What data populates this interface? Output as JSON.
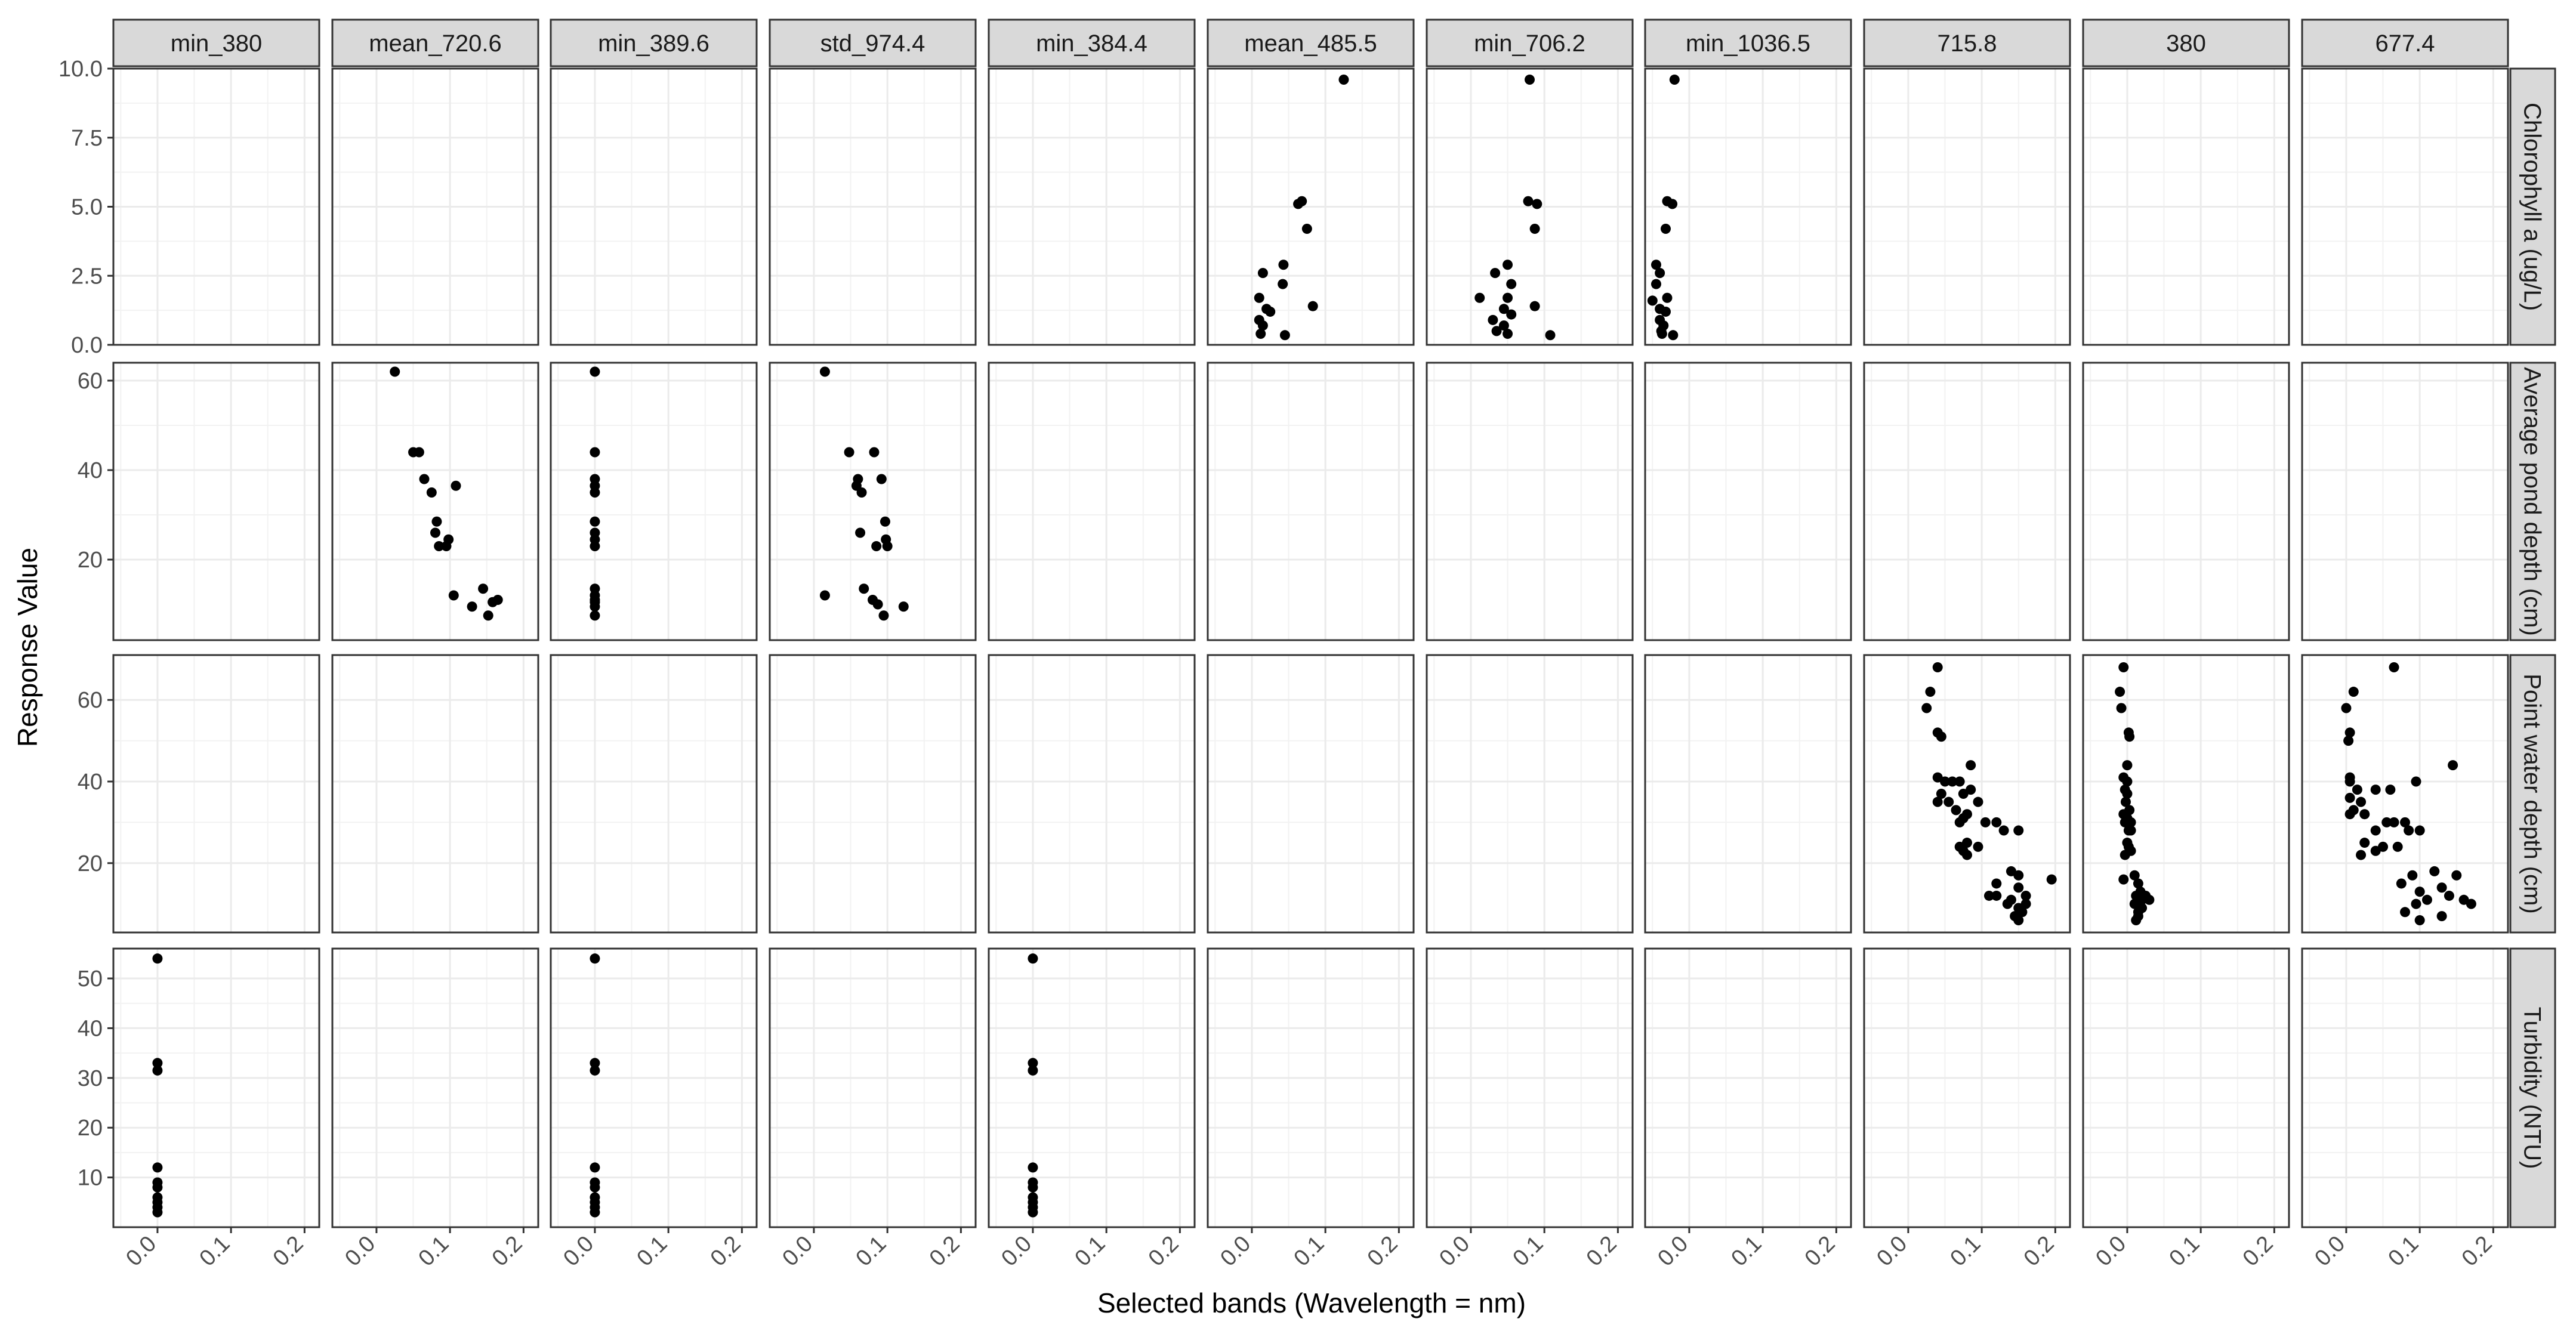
{
  "chart_data": {
    "type": "scatter",
    "facet": "grid",
    "xlabel": "Selected bands (Wavelength = nm)",
    "ylabel": "Response Value",
    "columns": [
      "min_380",
      "mean_720.6",
      "min_389.6",
      "std_974.4",
      "min_384.4",
      "mean_485.5",
      "min_706.2",
      "min_1036.5",
      "715.8",
      "380",
      "677.4"
    ],
    "rows": [
      {
        "label": "Chlorophyll a (ug/L)",
        "ylim": [
          0,
          10
        ],
        "ticks": [
          0.0,
          2.5,
          5.0,
          7.5,
          10.0
        ],
        "tick_labels": [
          "0.0",
          "2.5",
          "5.0",
          "7.5",
          "10.0"
        ]
      },
      {
        "label": "Average pond depth (cm)",
        "ylim": [
          2,
          64
        ],
        "ticks": [
          20,
          40,
          60
        ],
        "tick_labels": [
          "20",
          "40",
          "60"
        ]
      },
      {
        "label": "Point water depth (cm)",
        "ylim": [
          3,
          71
        ],
        "ticks": [
          20,
          40,
          60
        ],
        "tick_labels": [
          "20",
          "40",
          "60"
        ]
      },
      {
        "label": "Turbidity (NTU)",
        "ylim": [
          0,
          56
        ],
        "ticks": [
          10,
          20,
          30,
          40,
          50
        ],
        "tick_labels": [
          "10",
          "20",
          "30",
          "40",
          "50"
        ]
      }
    ],
    "xlim": [
      -0.06,
      0.22
    ],
    "x_ticks": [
      0.0,
      0.1,
      0.2
    ],
    "x_tick_labels": [
      "0.0",
      "0.1",
      "0.2"
    ],
    "grid": true,
    "point_color": "#000000",
    "panels": [
      {
        "row": 0,
        "col": 5,
        "points": [
          [
            0.125,
            9.6
          ],
          [
            0.063,
            5.1
          ],
          [
            0.068,
            5.2
          ],
          [
            0.075,
            4.2
          ],
          [
            0.083,
            1.4
          ],
          [
            0.043,
            2.9
          ],
          [
            0.042,
            2.2
          ],
          [
            0.015,
            2.6
          ],
          [
            0.01,
            1.7
          ],
          [
            0.02,
            1.3
          ],
          [
            0.025,
            1.2
          ],
          [
            0.01,
            0.9
          ],
          [
            0.015,
            0.7
          ],
          [
            0.012,
            0.4
          ],
          [
            0.045,
            0.35
          ]
        ]
      },
      {
        "row": 0,
        "col": 6,
        "points": [
          [
            0.08,
            9.6
          ],
          [
            0.078,
            5.2
          ],
          [
            0.09,
            5.1
          ],
          [
            0.087,
            4.2
          ],
          [
            0.087,
            1.4
          ],
          [
            0.05,
            2.9
          ],
          [
            0.055,
            2.2
          ],
          [
            0.033,
            2.6
          ],
          [
            0.012,
            1.7
          ],
          [
            0.05,
            1.7
          ],
          [
            0.045,
            1.3
          ],
          [
            0.055,
            1.1
          ],
          [
            0.03,
            0.9
          ],
          [
            0.045,
            0.7
          ],
          [
            0.035,
            0.5
          ],
          [
            0.108,
            0.35
          ],
          [
            0.05,
            0.4
          ]
        ]
      },
      {
        "row": 0,
        "col": 7,
        "points": [
          [
            -0.02,
            9.6
          ],
          [
            -0.03,
            5.2
          ],
          [
            -0.023,
            5.1
          ],
          [
            -0.032,
            4.2
          ],
          [
            -0.045,
            2.9
          ],
          [
            -0.04,
            2.6
          ],
          [
            -0.045,
            2.2
          ],
          [
            -0.03,
            1.7
          ],
          [
            -0.05,
            1.6
          ],
          [
            -0.04,
            1.3
          ],
          [
            -0.032,
            1.2
          ],
          [
            -0.04,
            0.9
          ],
          [
            -0.035,
            0.7
          ],
          [
            -0.038,
            0.5
          ],
          [
            -0.037,
            0.4
          ],
          [
            -0.022,
            0.35
          ]
        ]
      },
      {
        "row": 1,
        "col": 1,
        "points": [
          [
            0.025,
            62
          ],
          [
            0.05,
            44
          ],
          [
            0.058,
            44
          ],
          [
            0.065,
            38
          ],
          [
            0.075,
            35
          ],
          [
            0.108,
            36.5
          ],
          [
            0.082,
            28.5
          ],
          [
            0.08,
            26
          ],
          [
            0.085,
            23
          ],
          [
            0.098,
            24.5
          ],
          [
            0.095,
            23
          ],
          [
            0.105,
            12
          ],
          [
            0.13,
            9.5
          ],
          [
            0.145,
            13.5
          ],
          [
            0.158,
            10.5
          ],
          [
            0.165,
            11
          ],
          [
            0.152,
            7.5
          ]
        ]
      },
      {
        "row": 1,
        "col": 2,
        "points": [
          [
            0,
            62
          ],
          [
            0,
            44
          ],
          [
            0,
            38
          ],
          [
            0,
            36.5
          ],
          [
            0,
            35
          ],
          [
            0,
            28.5
          ],
          [
            0,
            26
          ],
          [
            0,
            24.5
          ],
          [
            0,
            23
          ],
          [
            0,
            13.5
          ],
          [
            0,
            12
          ],
          [
            0,
            11
          ],
          [
            0,
            10.5
          ],
          [
            0,
            9.5
          ],
          [
            0,
            7.5
          ]
        ]
      },
      {
        "row": 1,
        "col": 3,
        "points": [
          [
            0.015,
            62
          ],
          [
            0.048,
            44
          ],
          [
            0.082,
            44
          ],
          [
            0.06,
            38
          ],
          [
            0.058,
            36.5
          ],
          [
            0.065,
            35
          ],
          [
            0.092,
            38
          ],
          [
            0.097,
            28.5
          ],
          [
            0.063,
            26
          ],
          [
            0.098,
            24.5
          ],
          [
            0.085,
            23
          ],
          [
            0.1,
            23
          ],
          [
            0.015,
            12
          ],
          [
            0.068,
            13.5
          ],
          [
            0.08,
            11
          ],
          [
            0.087,
            10
          ],
          [
            0.122,
            9.5
          ],
          [
            0.095,
            7.5
          ]
        ]
      },
      {
        "row": 2,
        "col": 8,
        "points": [
          [
            0.04,
            68
          ],
          [
            0.03,
            62
          ],
          [
            0.025,
            58
          ],
          [
            0.04,
            52
          ],
          [
            0.045,
            51
          ],
          [
            0.085,
            44
          ],
          [
            0.04,
            41
          ],
          [
            0.05,
            40
          ],
          [
            0.06,
            40
          ],
          [
            0.07,
            40
          ],
          [
            0.085,
            38
          ],
          [
            0.075,
            37
          ],
          [
            0.045,
            37
          ],
          [
            0.055,
            35
          ],
          [
            0.04,
            35
          ],
          [
            0.065,
            33
          ],
          [
            0.08,
            32
          ],
          [
            0.075,
            31
          ],
          [
            0.07,
            30
          ],
          [
            0.095,
            35
          ],
          [
            0.105,
            30
          ],
          [
            0.12,
            30
          ],
          [
            0.13,
            28
          ],
          [
            0.15,
            28
          ],
          [
            0.08,
            25
          ],
          [
            0.07,
            24
          ],
          [
            0.095,
            24
          ],
          [
            0.075,
            23
          ],
          [
            0.08,
            22
          ],
          [
            0.195,
            16
          ],
          [
            0.14,
            18
          ],
          [
            0.15,
            17
          ],
          [
            0.12,
            15
          ],
          [
            0.11,
            12
          ],
          [
            0.12,
            12
          ],
          [
            0.15,
            14
          ],
          [
            0.14,
            11
          ],
          [
            0.16,
            12
          ],
          [
            0.16,
            10
          ],
          [
            0.135,
            10
          ],
          [
            0.15,
            9
          ],
          [
            0.155,
            8
          ],
          [
            0.145,
            7
          ],
          [
            0.15,
            6
          ]
        ]
      },
      {
        "row": 2,
        "col": 9,
        "points": [
          [
            -0.005,
            68
          ],
          [
            -0.01,
            62
          ],
          [
            -0.008,
            58
          ],
          [
            0.002,
            52
          ],
          [
            0.003,
            51
          ],
          [
            0.0,
            44
          ],
          [
            -0.005,
            41
          ],
          [
            0.0,
            40
          ],
          [
            -0.003,
            38
          ],
          [
            0.0,
            37
          ],
          [
            -0.002,
            35
          ],
          [
            0.003,
            33
          ],
          [
            -0.005,
            32
          ],
          [
            0.0,
            31
          ],
          [
            0.005,
            30
          ],
          [
            -0.003,
            30
          ],
          [
            0.005,
            28
          ],
          [
            0.002,
            28
          ],
          [
            0.0,
            25
          ],
          [
            0.002,
            24
          ],
          [
            0.005,
            23
          ],
          [
            -0.003,
            22
          ],
          [
            0.01,
            17
          ],
          [
            -0.005,
            16
          ],
          [
            0.015,
            15
          ],
          [
            0.018,
            13
          ],
          [
            0.012,
            12
          ],
          [
            0.025,
            12
          ],
          [
            0.03,
            11
          ],
          [
            0.02,
            11
          ],
          [
            0.01,
            10
          ],
          [
            0.02,
            9
          ],
          [
            0.015,
            8
          ],
          [
            0.015,
            7
          ],
          [
            0.012,
            6
          ]
        ]
      },
      {
        "row": 2,
        "col": 10,
        "points": [
          [
            0.065,
            68
          ],
          [
            0.01,
            62
          ],
          [
            0.0,
            58
          ],
          [
            0.005,
            52
          ],
          [
            0.003,
            50
          ],
          [
            0.145,
            44
          ],
          [
            0.005,
            41
          ],
          [
            0.005,
            40
          ],
          [
            0.015,
            38
          ],
          [
            0.04,
            38
          ],
          [
            0.06,
            38
          ],
          [
            0.005,
            36
          ],
          [
            0.02,
            35
          ],
          [
            0.095,
            40
          ],
          [
            0.01,
            33
          ],
          [
            0.025,
            32
          ],
          [
            0.005,
            32
          ],
          [
            0.055,
            30
          ],
          [
            0.08,
            30
          ],
          [
            0.065,
            30
          ],
          [
            0.04,
            28
          ],
          [
            0.085,
            28
          ],
          [
            0.1,
            28
          ],
          [
            0.025,
            25
          ],
          [
            0.05,
            24
          ],
          [
            0.04,
            23
          ],
          [
            0.07,
            24
          ],
          [
            0.02,
            22
          ],
          [
            0.075,
            15
          ],
          [
            0.09,
            17
          ],
          [
            0.12,
            18
          ],
          [
            0.15,
            17
          ],
          [
            0.1,
            13
          ],
          [
            0.11,
            11
          ],
          [
            0.13,
            14
          ],
          [
            0.16,
            11
          ],
          [
            0.095,
            10
          ],
          [
            0.14,
            12
          ],
          [
            0.17,
            10
          ],
          [
            0.08,
            8
          ],
          [
            0.13,
            7
          ],
          [
            0.1,
            6
          ]
        ]
      },
      {
        "row": 3,
        "col": 0,
        "points": [
          [
            0,
            54
          ],
          [
            0,
            33
          ],
          [
            0,
            31.5
          ],
          [
            0,
            12
          ],
          [
            0,
            9
          ],
          [
            0,
            8
          ],
          [
            0,
            6
          ],
          [
            0,
            5
          ],
          [
            0,
            4
          ],
          [
            0,
            3
          ]
        ]
      },
      {
        "row": 3,
        "col": 2,
        "points": [
          [
            0,
            54
          ],
          [
            0,
            33
          ],
          [
            0,
            31.5
          ],
          [
            0,
            12
          ],
          [
            0,
            9
          ],
          [
            0,
            8
          ],
          [
            0,
            6
          ],
          [
            0,
            5
          ],
          [
            0,
            4
          ],
          [
            0,
            3
          ]
        ]
      },
      {
        "row": 3,
        "col": 4,
        "points": [
          [
            0,
            54
          ],
          [
            0,
            33
          ],
          [
            0,
            31.5
          ],
          [
            0,
            12
          ],
          [
            0,
            9
          ],
          [
            0,
            8
          ],
          [
            0,
            6
          ],
          [
            0,
            5
          ],
          [
            0,
            4
          ],
          [
            0,
            3
          ]
        ]
      }
    ]
  }
}
